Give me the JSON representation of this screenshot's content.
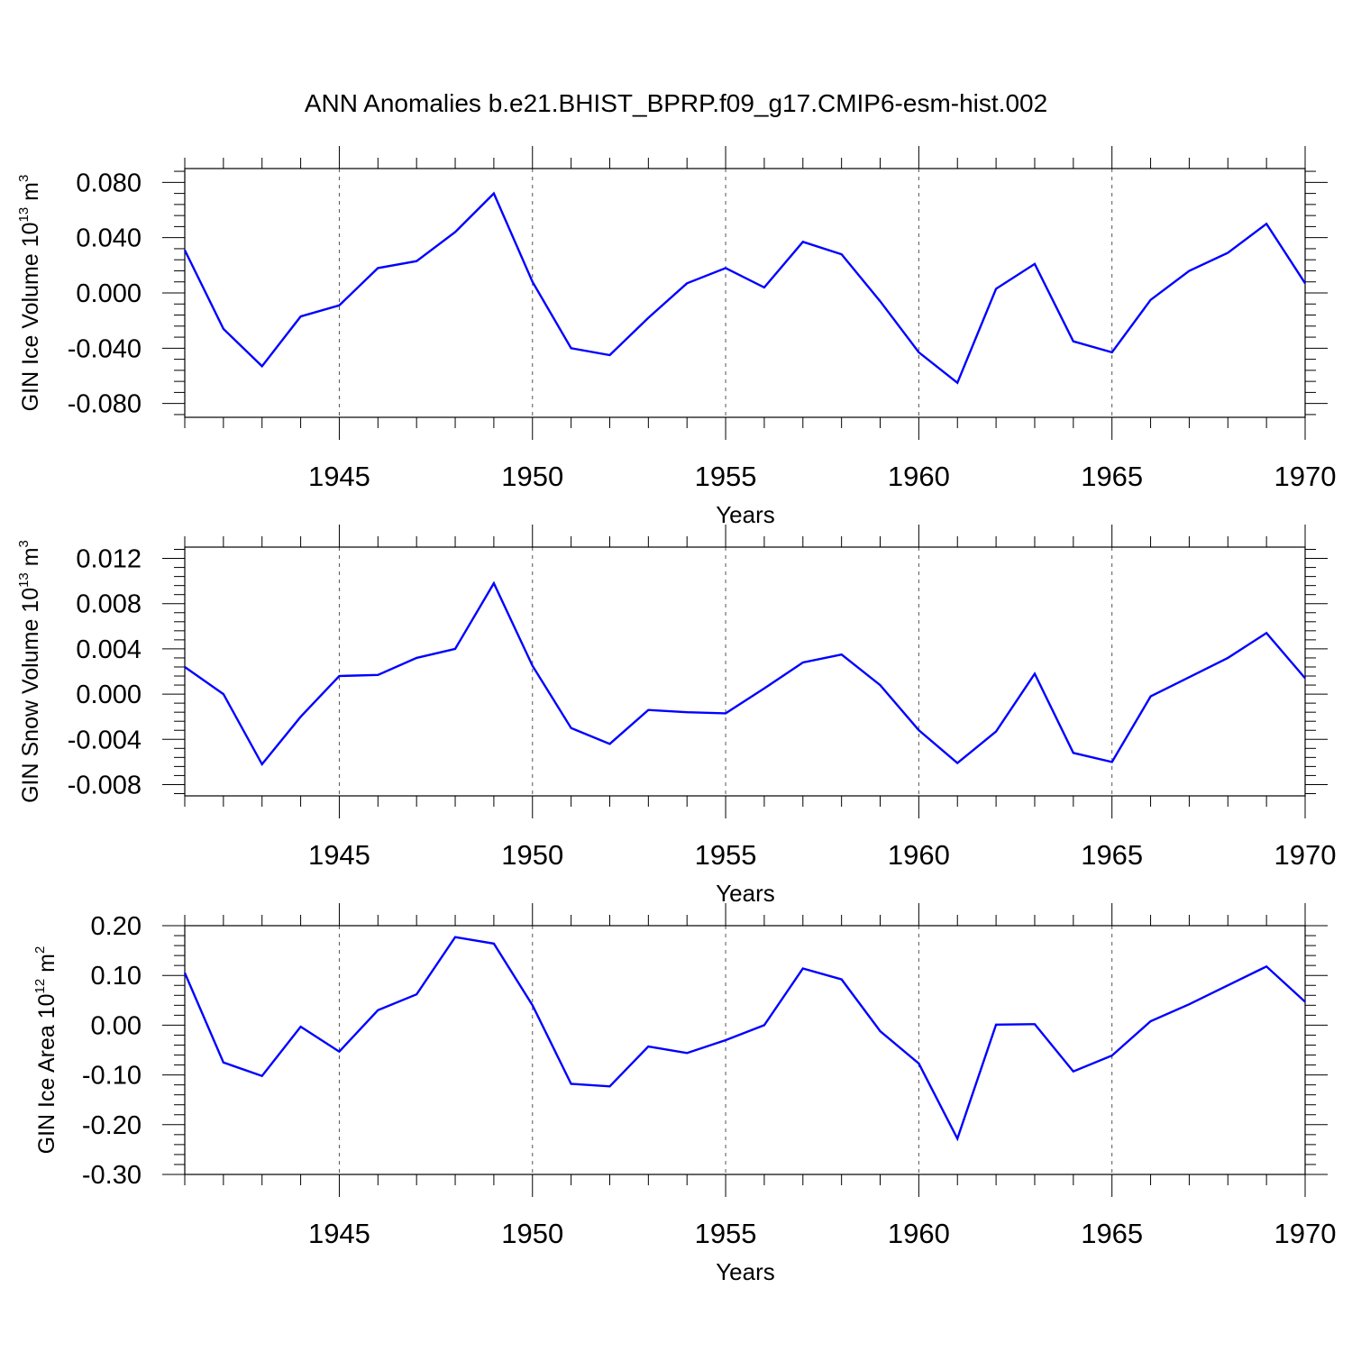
{
  "figure": {
    "title": "ANN Anomalies b.e21.BHIST_BPRP.f09_g17.CMIP6-esm-hist.002"
  },
  "chart_data": [
    {
      "type": "line",
      "ylabel": {
        "text": "GIN Ice Volume 10",
        "exp": "13",
        "unit": " m",
        "unit_exp": "3"
      },
      "xlabel": "Years",
      "xlim": [
        1941,
        1970
      ],
      "ylim": [
        -0.09,
        0.09
      ],
      "xticks": [
        1945,
        1950,
        1955,
        1960,
        1965,
        1970
      ],
      "yticks": [
        -0.08,
        -0.04,
        0.0,
        0.04,
        0.08
      ],
      "ytick_labels": [
        "-0.080",
        "-0.040",
        "0.000",
        "0.040",
        "0.080"
      ],
      "grid": "dashed vertical at major x ticks",
      "color": "#0000ff",
      "x": [
        1941,
        1942,
        1943,
        1944,
        1945,
        1946,
        1947,
        1948,
        1949,
        1950,
        1951,
        1952,
        1953,
        1954,
        1955,
        1956,
        1957,
        1958,
        1959,
        1960,
        1961,
        1962,
        1963,
        1964,
        1965,
        1966,
        1967,
        1968,
        1969,
        1970
      ],
      "y": [
        0.031,
        -0.026,
        -0.053,
        -0.017,
        -0.009,
        0.018,
        0.023,
        0.044,
        0.072,
        0.008,
        -0.04,
        -0.045,
        -0.018,
        0.007,
        0.018,
        0.004,
        0.037,
        0.028,
        -0.006,
        -0.043,
        -0.065,
        0.003,
        0.021,
        -0.035,
        -0.043,
        -0.005,
        0.016,
        0.029,
        0.05,
        0.007
      ]
    },
    {
      "type": "line",
      "ylabel": {
        "text": "GIN Snow Volume 10",
        "exp": "13",
        "unit": " m",
        "unit_exp": "3"
      },
      "xlabel": "Years",
      "xlim": [
        1941,
        1970
      ],
      "ylim": [
        -0.009,
        0.013
      ],
      "xticks": [
        1945,
        1950,
        1955,
        1960,
        1965,
        1970
      ],
      "yticks": [
        -0.008,
        -0.004,
        0.0,
        0.004,
        0.008,
        0.012
      ],
      "ytick_labels": [
        "-0.008",
        "-0.004",
        "0.000",
        "0.004",
        "0.008",
        "0.012"
      ],
      "grid": "dashed vertical at major x ticks",
      "color": "#0000ff",
      "x": [
        1941,
        1942,
        1943,
        1944,
        1945,
        1946,
        1947,
        1948,
        1949,
        1950,
        1951,
        1952,
        1953,
        1954,
        1955,
        1956,
        1957,
        1958,
        1959,
        1960,
        1961,
        1962,
        1963,
        1964,
        1965,
        1966,
        1967,
        1968,
        1969,
        1970
      ],
      "y": [
        0.0024,
        0.0,
        -0.0062,
        -0.002,
        0.0016,
        0.0017,
        0.0032,
        0.004,
        0.0098,
        0.0025,
        -0.003,
        -0.0044,
        -0.0014,
        -0.0016,
        -0.0017,
        0.0005,
        0.0028,
        0.0035,
        0.0008,
        -0.0032,
        -0.0061,
        -0.0033,
        0.0018,
        -0.0052,
        -0.006,
        -0.0002,
        0.0015,
        0.0032,
        0.0054,
        0.0014
      ]
    },
    {
      "type": "line",
      "ylabel": {
        "text": "GIN Ice Area 10",
        "exp": "12",
        "unit": " m",
        "unit_exp": "2"
      },
      "xlabel": "Years",
      "xlim": [
        1941,
        1970
      ],
      "ylim": [
        -0.3,
        0.2
      ],
      "xticks": [
        1945,
        1950,
        1955,
        1960,
        1965,
        1970
      ],
      "yticks": [
        -0.3,
        -0.2,
        -0.1,
        0.0,
        0.1,
        0.2
      ],
      "ytick_labels": [
        "-0.30",
        "-0.20",
        "-0.10",
        "0.00",
        "0.10",
        "0.20"
      ],
      "grid": "dashed vertical at major x ticks",
      "color": "#0000ff",
      "x": [
        1941,
        1942,
        1943,
        1944,
        1945,
        1946,
        1947,
        1948,
        1949,
        1950,
        1951,
        1952,
        1953,
        1954,
        1955,
        1956,
        1957,
        1958,
        1959,
        1960,
        1961,
        1962,
        1963,
        1964,
        1965,
        1966,
        1967,
        1968,
        1969,
        1970
      ],
      "y": [
        0.105,
        -0.075,
        -0.102,
        -0.003,
        -0.053,
        0.03,
        0.062,
        0.177,
        0.164,
        0.04,
        -0.118,
        -0.123,
        -0.043,
        -0.056,
        -0.03,
        0.0,
        0.114,
        0.092,
        -0.012,
        -0.077,
        -0.228,
        0.001,
        0.002,
        -0.093,
        -0.061,
        0.008,
        0.042,
        0.08,
        0.118,
        0.047
      ]
    }
  ]
}
